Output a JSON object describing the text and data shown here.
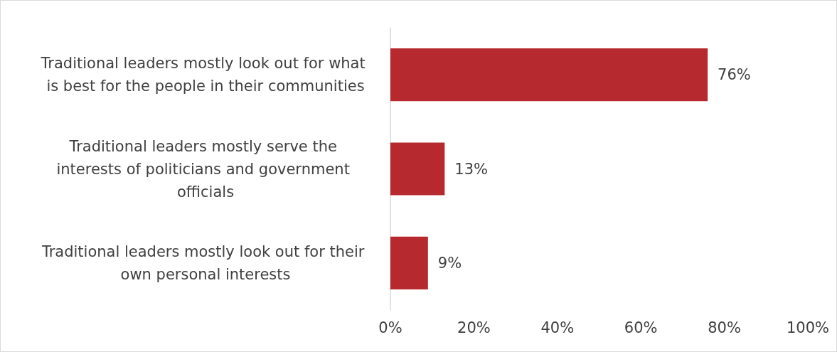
{
  "chart_data": {
    "type": "bar",
    "orientation": "horizontal",
    "categories": [
      "Traditional leaders mostly look out for what is best for the people in their communities",
      "Traditional leaders mostly serve the interests of politicians and government officials",
      "Traditional leaders mostly look out for their own personal interests"
    ],
    "values": [
      76,
      13,
      9
    ],
    "color": "#b5292f",
    "value_labels": [
      "76%",
      "13%",
      "9%"
    ],
    "xlim": [
      0,
      100
    ],
    "xticks": [
      {
        "value": 0,
        "label": "0%"
      },
      {
        "value": 20,
        "label": "20%"
      },
      {
        "value": 40,
        "label": "40%"
      },
      {
        "value": 60,
        "label": "60%"
      },
      {
        "value": 80,
        "label": "80%"
      },
      {
        "value": 100,
        "label": "100%"
      }
    ],
    "grid": false
  }
}
